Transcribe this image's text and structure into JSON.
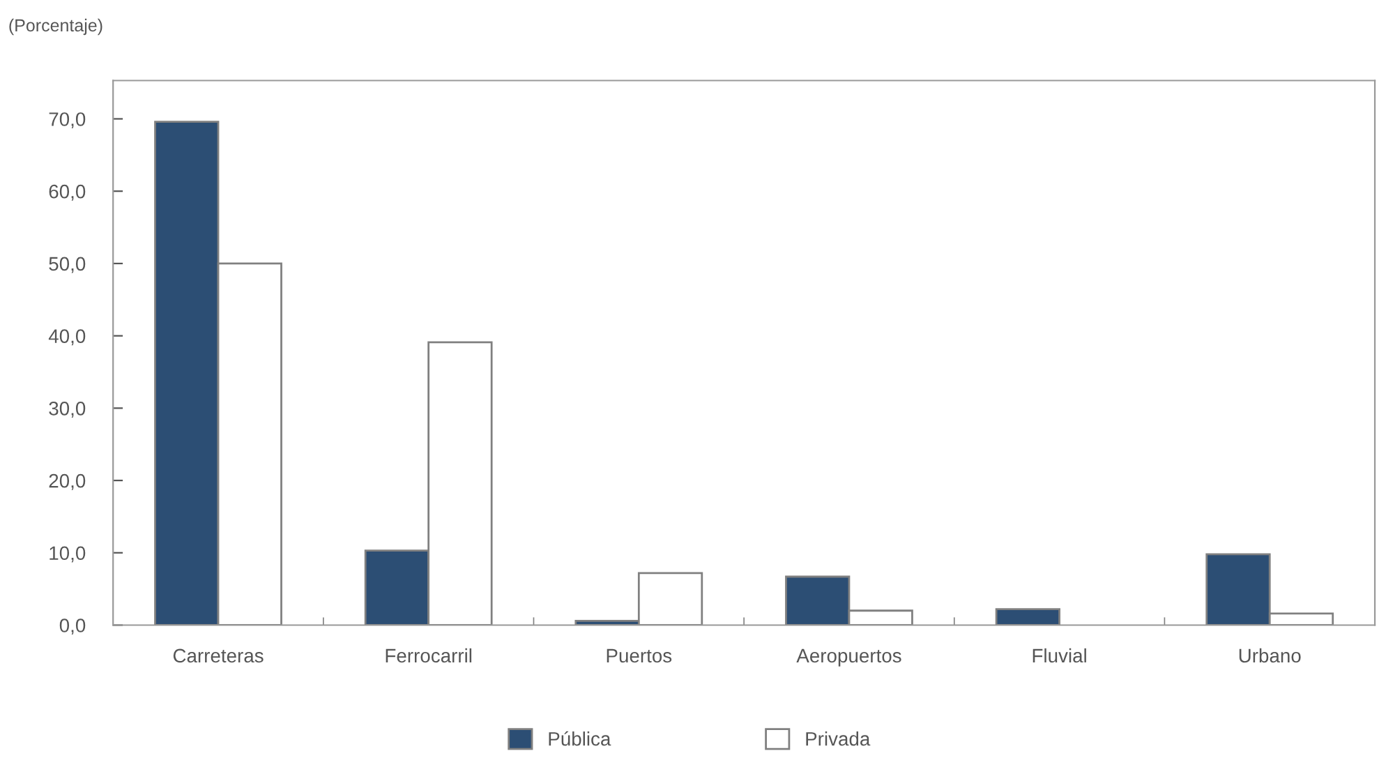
{
  "chart_data": {
    "type": "bar",
    "ylabel": "(Porcentaje)",
    "categories": [
      "Carreteras",
      "Ferrocarril",
      "Puertos",
      "Aeropuertos",
      "Fluvial",
      "Urbano"
    ],
    "series": [
      {
        "name": "Pública",
        "color": "#2c4e74",
        "values": [
          69.6,
          10.3,
          0.6,
          6.7,
          2.2,
          9.8
        ]
      },
      {
        "name": "Privada",
        "color": "#ffffff",
        "values": [
          50.0,
          39.1,
          7.2,
          2.0,
          null,
          1.6
        ]
      }
    ],
    "ylim": [
      0,
      75.3
    ],
    "yticks": [
      {
        "value": 0,
        "label": "0,0"
      },
      {
        "value": 10,
        "label": "10,0"
      },
      {
        "value": 20,
        "label": "20,0"
      },
      {
        "value": 30,
        "label": "30,0"
      },
      {
        "value": 40,
        "label": "40,0"
      },
      {
        "value": 50,
        "label": "50,0"
      },
      {
        "value": 60,
        "label": "60,0"
      },
      {
        "value": 70,
        "label": "70,0"
      }
    ],
    "grid": false,
    "legend": "bottom"
  }
}
